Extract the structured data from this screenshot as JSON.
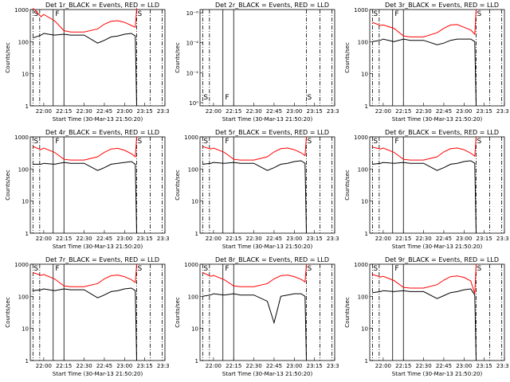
{
  "charts": [
    {
      "title": "Det 1r_BLACK = Events, RED = LLD",
      "xlabel": "Start Time (30-Mar-13 21:50:20)",
      "ylabel": "Counts/sec",
      "yticks": [
        "1",
        "10",
        "100",
        "1000"
      ],
      "xticks": [
        "22:00",
        "22:15",
        "22:30",
        "22:45",
        "23:00",
        "23:15",
        "23:30"
      ],
      "markers": [
        "S",
        "F",
        "S"
      ],
      "flat": false
    },
    {
      "title": "Det 2r_BLACK = Events, RED = LLD",
      "xlabel": "Start Time (30-Mar-13 21:50:20)",
      "ylabel": "Counts/sec",
      "yticks": [
        "10⁰",
        "10⁻²",
        "10⁻⁴",
        "10⁻⁶"
      ],
      "xticks": [
        "22:00",
        "22:15",
        "22:30",
        "22:45",
        "23:00",
        "23:15",
        "23:30"
      ],
      "markers": [
        "S",
        "F",
        "S"
      ],
      "flat": true
    },
    {
      "title": "Det 3r_BLACK = Events, RED = LLD",
      "xlabel": "Start Time (30-Mar-13 21:50:20)",
      "ylabel": "Counts/sec",
      "yticks": [
        "1",
        "10",
        "100",
        "1000"
      ],
      "xticks": [
        "22:00",
        "22:15",
        "22:30",
        "22:45",
        "23:00",
        "23:15",
        "23:30"
      ],
      "markers": [
        "S",
        "F",
        "S"
      ],
      "flat": false
    },
    {
      "title": "Det 4r_BLACK = Events, RED = LLD",
      "xlabel": "Start Time (30-Mar-13 21:50:20)",
      "ylabel": "Counts/sec",
      "yticks": [
        "1",
        "10",
        "100",
        "1000"
      ],
      "xticks": [
        "22:00",
        "22:15",
        "22:30",
        "22:45",
        "23:00",
        "23:15",
        "23:30"
      ],
      "markers": [
        "S",
        "F",
        "S"
      ],
      "flat": false
    },
    {
      "title": "Det 5r_BLACK = Events, RED = LLD",
      "xlabel": "Start Time (30-Mar-13 21:50:20)",
      "ylabel": "Counts/sec",
      "yticks": [
        "1",
        "10",
        "100",
        "1000"
      ],
      "xticks": [
        "22:00",
        "22:15",
        "22:30",
        "22:45",
        "23:00",
        "23:15",
        "23:30"
      ],
      "markers": [
        "S",
        "F",
        "S"
      ],
      "flat": false
    },
    {
      "title": "Det 6r_BLACK = Events, RED = LLD",
      "xlabel": "Start Time (30-Mar-13 21:50:20)",
      "ylabel": "Counts/sec",
      "yticks": [
        "1",
        "10",
        "100",
        "1000"
      ],
      "xticks": [
        "22:00",
        "22:15",
        "22:30",
        "22:45",
        "23:00",
        "23:15",
        "23:30"
      ],
      "markers": [
        "S",
        "F",
        "S"
      ],
      "flat": false
    },
    {
      "title": "Det 7r_BLACK = Events, RED = LLD",
      "xlabel": "Start Time (30-Mar-13 21:50:20)",
      "ylabel": "Counts/sec",
      "yticks": [
        "1",
        "10",
        "100",
        "1000"
      ],
      "xticks": [
        "22:00",
        "22:15",
        "22:30",
        "22:45",
        "23:00",
        "23:15",
        "23:30"
      ],
      "markers": [
        "S",
        "F",
        "S"
      ],
      "flat": false
    },
    {
      "title": "Det 8r_BLACK = Events, RED = LLD",
      "xlabel": "Start Time (30-Mar-13 21:50:20)",
      "ylabel": "Counts/sec",
      "yticks": [
        "1",
        "10",
        "100",
        "1000"
      ],
      "xticks": [
        "22:00",
        "22:15",
        "22:30",
        "22:45",
        "23:00",
        "23:15",
        "23:30"
      ],
      "markers": [
        "S",
        "F",
        "S"
      ],
      "flat": false
    },
    {
      "title": "Det 9r_BLACK = Events, RED = LLD",
      "xlabel": "Start Time (30-Mar-13 21:50:20)",
      "ylabel": "Counts/sec",
      "yticks": [
        "1",
        "10",
        "100",
        "1000"
      ],
      "xticks": [
        "22:00",
        "22:15",
        "22:30",
        "22:45",
        "23:00",
        "23:15",
        "23:30"
      ],
      "markers": [
        "S",
        "F",
        "S"
      ],
      "flat": false
    }
  ],
  "chart_data": [
    {
      "type": "line",
      "title": "Det 1r_BLACK = Events, RED = LLD",
      "xlabel": "Start Time (30-Mar-13 21:50:20)",
      "ylabel": "Counts/sec",
      "ylog": true,
      "ylim": [
        1,
        1000
      ],
      "x": [
        "21:52",
        "21:58",
        "22:00",
        "22:08",
        "22:15",
        "22:20",
        "22:30",
        "22:40",
        "22:45",
        "22:50",
        "22:55",
        "23:00",
        "23:05",
        "23:08",
        "23:09"
      ],
      "series": [
        {
          "name": "LLD",
          "color": "#ff0000",
          "values": [
            1100,
            600,
            700,
            450,
            220,
            200,
            200,
            250,
            350,
            430,
            450,
            400,
            320,
            280,
            1100
          ]
        },
        {
          "name": "Events",
          "color": "#000000",
          "values": [
            130,
            160,
            180,
            160,
            170,
            160,
            160,
            90,
            110,
            140,
            150,
            170,
            180,
            150,
            1
          ]
        }
      ]
    },
    {
      "type": "line",
      "title": "Det 2r_BLACK = Events, RED = LLD",
      "xlabel": "Start Time (30-Mar-13 21:50:20)",
      "ylabel": "Counts/sec",
      "ylog": true,
      "series": []
    },
    {
      "type": "line",
      "title": "Det 3r_BLACK = Events, RED = LLD",
      "xlabel": "Start Time (30-Mar-13 21:50:20)",
      "ylabel": "Counts/sec",
      "ylog": true,
      "ylim": [
        1,
        1000
      ],
      "x": [
        "21:52",
        "21:58",
        "22:00",
        "22:08",
        "22:15",
        "22:20",
        "22:30",
        "22:40",
        "22:45",
        "22:50",
        "22:55",
        "23:00",
        "23:05",
        "23:08",
        "23:09"
      ],
      "series": [
        {
          "name": "LLD",
          "color": "#ff0000",
          "values": [
            400,
            320,
            330,
            260,
            150,
            140,
            140,
            190,
            260,
            330,
            340,
            280,
            230,
            170,
            1000
          ]
        },
        {
          "name": "Events",
          "color": "#000000",
          "values": [
            100,
            110,
            120,
            100,
            120,
            110,
            110,
            80,
            90,
            110,
            120,
            120,
            120,
            100,
            1
          ]
        }
      ]
    },
    {
      "type": "line",
      "title": "Det 4r_BLACK = Events, RED = LLD",
      "xlabel": "Start Time (30-Mar-13 21:50:20)",
      "ylabel": "Counts/sec",
      "ylog": true,
      "ylim": [
        1,
        1000
      ],
      "x": [
        "21:52",
        "21:58",
        "22:00",
        "22:08",
        "22:15",
        "22:20",
        "22:30",
        "22:40",
        "22:45",
        "22:50",
        "22:55",
        "23:00",
        "23:05",
        "23:08",
        "23:09"
      ],
      "series": [
        {
          "name": "LLD",
          "color": "#ff0000",
          "values": [
            500,
            400,
            450,
            330,
            200,
            190,
            190,
            240,
            330,
            420,
            440,
            380,
            300,
            240,
            1000
          ]
        },
        {
          "name": "Events",
          "color": "#000000",
          "values": [
            140,
            140,
            150,
            140,
            160,
            150,
            150,
            90,
            110,
            140,
            150,
            160,
            170,
            140,
            1
          ]
        }
      ]
    },
    {
      "type": "line",
      "title": "Det 5r_BLACK = Events, RED = LLD",
      "xlabel": "Start Time (30-Mar-13 21:50:20)",
      "ylabel": "Counts/sec",
      "ylog": true,
      "ylim": [
        1,
        1000
      ],
      "x": [
        "21:52",
        "21:58",
        "22:00",
        "22:08",
        "22:15",
        "22:20",
        "22:30",
        "22:40",
        "22:45",
        "22:50",
        "22:55",
        "23:00",
        "23:05",
        "23:08",
        "23:09"
      ],
      "series": [
        {
          "name": "LLD",
          "color": "#ff0000",
          "values": [
            500,
            420,
            450,
            330,
            200,
            190,
            190,
            240,
            340,
            430,
            450,
            400,
            320,
            260,
            1000
          ]
        },
        {
          "name": "Events",
          "color": "#000000",
          "values": [
            140,
            150,
            160,
            150,
            160,
            150,
            150,
            90,
            110,
            140,
            150,
            170,
            180,
            150,
            1
          ]
        }
      ]
    },
    {
      "type": "line",
      "title": "Det 6r_BLACK = Events, RED = LLD",
      "xlabel": "Start Time (30-Mar-13 21:50:20)",
      "ylabel": "Counts/sec",
      "ylog": true,
      "ylim": [
        1,
        1000
      ],
      "x": [
        "21:52",
        "21:58",
        "22:00",
        "22:08",
        "22:15",
        "22:20",
        "22:30",
        "22:40",
        "22:45",
        "22:50",
        "22:55",
        "23:00",
        "23:05",
        "23:08",
        "23:09"
      ],
      "series": [
        {
          "name": "LLD",
          "color": "#ff0000",
          "values": [
            480,
            420,
            450,
            330,
            200,
            190,
            190,
            240,
            340,
            430,
            450,
            400,
            310,
            250,
            1000
          ]
        },
        {
          "name": "Events",
          "color": "#000000",
          "values": [
            140,
            150,
            160,
            150,
            160,
            150,
            150,
            90,
            110,
            140,
            150,
            170,
            180,
            150,
            1
          ]
        }
      ]
    },
    {
      "type": "line",
      "title": "Det 7r_BLACK = Events, RED = LLD",
      "xlabel": "Start Time (30-Mar-13 21:50:20)",
      "ylabel": "Counts/sec",
      "ylog": true,
      "ylim": [
        1,
        1000
      ],
      "x": [
        "21:52",
        "21:58",
        "22:00",
        "22:08",
        "22:15",
        "22:20",
        "22:30",
        "22:40",
        "22:45",
        "22:50",
        "22:55",
        "23:00",
        "23:05",
        "23:08",
        "23:09"
      ],
      "series": [
        {
          "name": "LLD",
          "color": "#ff0000",
          "values": [
            550,
            450,
            480,
            350,
            210,
            200,
            200,
            250,
            350,
            440,
            460,
            410,
            330,
            270,
            1000
          ]
        },
        {
          "name": "Events",
          "color": "#000000",
          "values": [
            150,
            160,
            170,
            150,
            170,
            160,
            160,
            90,
            110,
            140,
            150,
            170,
            180,
            150,
            1
          ]
        }
      ]
    },
    {
      "type": "line",
      "title": "Det 8r_BLACK = Events, RED = LLD",
      "xlabel": "Start Time (30-Mar-13 21:50:20)",
      "ylabel": "Counts/sec",
      "ylog": true,
      "ylim": [
        1,
        1000
      ],
      "x": [
        "21:52",
        "21:58",
        "22:00",
        "22:08",
        "22:15",
        "22:20",
        "22:30",
        "22:40",
        "22:45",
        "22:50",
        "22:55",
        "23:00",
        "23:05",
        "23:08",
        "23:09"
      ],
      "series": [
        {
          "name": "LLD",
          "color": "#ff0000",
          "values": [
            550,
            420,
            450,
            330,
            210,
            200,
            200,
            250,
            350,
            440,
            460,
            410,
            340,
            280,
            1000
          ]
        },
        {
          "name": "Events",
          "color": "#000000",
          "values": [
            100,
            110,
            120,
            110,
            120,
            110,
            110,
            70,
            15,
            100,
            110,
            120,
            120,
            100,
            1
          ]
        }
      ]
    },
    {
      "type": "line",
      "title": "Det 9r_BLACK = Events, RED = LLD",
      "xlabel": "Start Time (30-Mar-13 21:50:20)",
      "ylabel": "Counts/sec",
      "ylog": true,
      "ylim": [
        1,
        1000
      ],
      "x": [
        "21:52",
        "21:58",
        "22:00",
        "22:08",
        "22:15",
        "22:20",
        "22:30",
        "22:40",
        "22:45",
        "22:50",
        "22:55",
        "23:00",
        "23:05",
        "23:08",
        "23:09"
      ],
      "series": [
        {
          "name": "LLD",
          "color": "#ff0000",
          "values": [
            480,
            400,
            420,
            310,
            190,
            180,
            180,
            230,
            320,
            410,
            430,
            390,
            300,
            120,
            1000
          ]
        },
        {
          "name": "Events",
          "color": "#000000",
          "values": [
            130,
            140,
            150,
            140,
            150,
            140,
            140,
            85,
            105,
            130,
            140,
            160,
            170,
            110,
            1
          ]
        }
      ]
    }
  ]
}
